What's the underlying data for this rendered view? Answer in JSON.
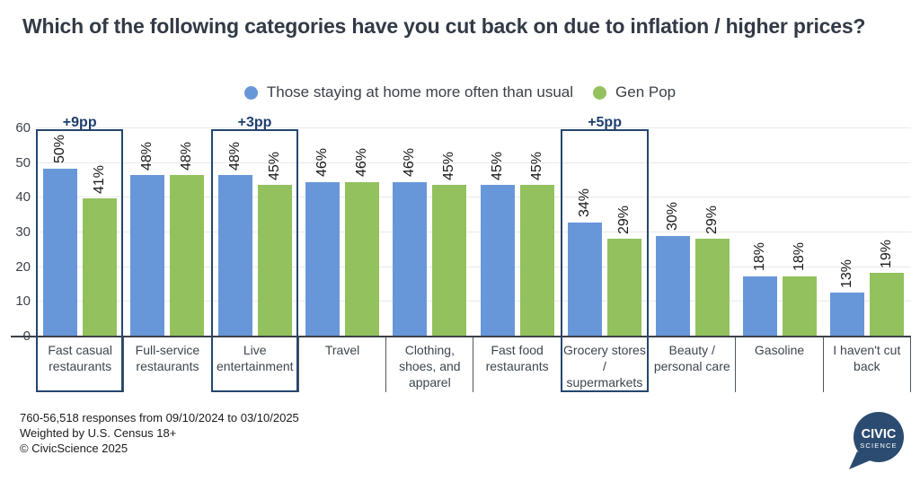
{
  "title": "Which of the following categories have you cut back on due to inflation / higher prices?",
  "legend": {
    "series1": "Those staying at home more often than usual",
    "series2": "Gen Pop"
  },
  "chart_data": {
    "type": "bar",
    "title": "Which of the following categories have you cut back on due to inflation / higher prices?",
    "categories": [
      "Fast casual restaurants",
      "Full-service restaurants",
      "Live entertainment",
      "Travel",
      "Clothing, shoes, and apparel",
      "Fast food restaurants",
      "Grocery stores / supermarkets",
      "Beauty / personal care",
      "Gasoline",
      "I haven't cut back"
    ],
    "category_lines": [
      [
        "Fast casual",
        "restaurants"
      ],
      [
        "Full-service",
        "restaurants"
      ],
      [
        "Live",
        "entertainment"
      ],
      [
        "Travel"
      ],
      [
        "Clothing,",
        "shoes, and",
        "apparel"
      ],
      [
        "Fast food",
        "restaurants"
      ],
      [
        "Grocery stores",
        "/",
        "supermarkets"
      ],
      [
        "Beauty /",
        "personal care"
      ],
      [
        "Gasoline"
      ],
      [
        "I haven't cut",
        "back"
      ]
    ],
    "series": [
      {
        "name": "Those staying at home more often than usual",
        "color": "#6897d9",
        "values": [
          50,
          48,
          48,
          46,
          46,
          45,
          34,
          30,
          18,
          13
        ]
      },
      {
        "name": "Gen Pop",
        "color": "#93c15e",
        "values": [
          41,
          48,
          45,
          46,
          45,
          45,
          29,
          29,
          18,
          19
        ]
      }
    ],
    "value_suffix": "%",
    "ylim": [
      0,
      60
    ],
    "yticks": [
      0,
      10,
      20,
      30,
      40,
      50,
      60
    ],
    "grid": "horizontal",
    "legend_position": "top-center",
    "annotations": [
      {
        "category_index": 0,
        "label": "+9pp"
      },
      {
        "category_index": 2,
        "label": "+3pp"
      },
      {
        "category_index": 6,
        "label": "+5pp"
      }
    ]
  },
  "footer": {
    "line1": "760-56,518 responses from 09/10/2024 to 03/10/2025",
    "line2": "Weighted by U.S. Census 18+",
    "line3": "© CivicScience 2025"
  },
  "logo": {
    "line1": "CIVIC",
    "line2": "SCIENCE"
  },
  "colors": {
    "blue": "#6897d9",
    "green": "#93c15e",
    "box_navy": "#24466e",
    "annotation_navy": "#1e3e6e",
    "logo_navy": "#2b4c70"
  }
}
